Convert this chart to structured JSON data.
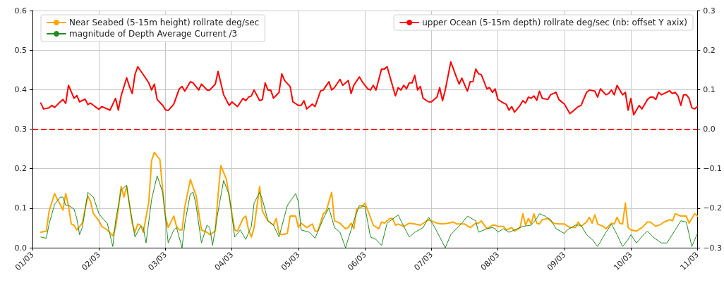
{
  "chart_data": {
    "type": "line",
    "xlim": [
      "--03-01",
      "--03-11"
    ],
    "xticks": [
      {
        "value": "--03-01",
        "label": "01/03"
      },
      {
        "value": "--03-02",
        "label": "02/03"
      },
      {
        "value": "--03-03",
        "label": "03/03"
      },
      {
        "value": "--03-04",
        "label": "04/03"
      },
      {
        "value": "--03-05",
        "label": "05/03"
      },
      {
        "value": "--03-06",
        "label": "06/03"
      },
      {
        "value": "--03-07",
        "label": "07/03"
      },
      {
        "value": "--03-08",
        "label": "08/03"
      },
      {
        "value": "--03-09",
        "label": "09/03"
      },
      {
        "value": "--03-10",
        "label": "10/03"
      },
      {
        "value": "--03-11",
        "label": "11/03"
      }
    ],
    "ylim": [
      0,
      0.6
    ],
    "yticks": [
      {
        "value": 0,
        "label": "0.0"
      },
      0.1,
      0.2,
      0.3,
      0.4,
      0.5,
      0.6
    ],
    "y2lim": [
      -0.3,
      0.3
    ],
    "y2ticks": [
      {
        "value": -0.3,
        "label": "−0.3"
      },
      {
        "value": -0.2,
        "label": "−0.2"
      },
      {
        "value": -0.1,
        "label": "−0.1"
      },
      {
        "value": 0,
        "label": "0.0"
      },
      0.1,
      0.2,
      0.3
    ],
    "grid": true,
    "legend": "top",
    "marker": "none",
    "line_style": "solid",
    "ref_lines": [
      {
        "axis": "y2",
        "value": 0,
        "color": "#ff0000",
        "line_style": "dashed"
      }
    ],
    "series": [
      {
        "name": "Near Seabed (5-15m height) rollrate deg/sec",
        "color": "#ffa500",
        "x": [
          "--03-01T03:00",
          "--03-01T05:00",
          "--03-01T06:00",
          "--03-01T08:00",
          "--03-01T09:00",
          "--03-01T10:00",
          "--03-01T11:00",
          "--03-01T12:00",
          "--03-01T13:00",
          "--03-01T14:00",
          "--03-01T15:00",
          "--03-01T16:00",
          "--03-01T18:00",
          "--03-01T19:00",
          "--03-01T20:00",
          "--03-01T21:00",
          "--03-01T22:00",
          "--03-02T00:00",
          "--03-02T01:00",
          "--03-02T03:00",
          "--03-02T05:00",
          "--03-02T06:00",
          "--03-02T07:00",
          "--03-02T08:00",
          "--03-02T09:00",
          "--03-02T10:00",
          "--03-02T11:00",
          "--03-02T12:00",
          "--03-02T13:00",
          "--03-02T14:00",
          "--03-02T15:00",
          "--03-02T16:00",
          "--03-02T18:00",
          "--03-02T19:00",
          "--03-02T20:00",
          "--03-02T22:00",
          "--03-02T23:00",
          "--03-03T00:00",
          "--03-03T01:00",
          "--03-03T03:00",
          "--03-03T04:00",
          "--03-03T05:00",
          "--03-03T06:00",
          "--03-03T07:00",
          "--03-03T09:00",
          "--03-03T10:00",
          "--03-03T11:00",
          "--03-03T13:00",
          "--03-03T15:00",
          "--03-03T16:00",
          "--03-03T18:00",
          "--03-03T19:00",
          "--03-03T20:00",
          "--03-03T22:00",
          "--03-04T00:00",
          "--03-04T01:00",
          "--03-04T02:00",
          "--03-04T04:00",
          "--03-04T05:00",
          "--03-04T06:00",
          "--03-04T07:00",
          "--03-04T08:00",
          "--03-04T10:00",
          "--03-04T11:00",
          "--03-04T13:00",
          "--03-04T15:00",
          "--03-04T16:00",
          "--03-04T17:00",
          "--03-04T18:00",
          "--03-04T20:00",
          "--03-04T21:00",
          "--03-04T23:00",
          "--03-05T00:00",
          "--03-05T01:00",
          "--03-05T03:00",
          "--03-05T05:00",
          "--03-05T06:00",
          "--03-05T07:00",
          "--03-05T09:00",
          "--03-05T10:00",
          "--03-05T12:00",
          "--03-05T13:00",
          "--03-05T15:00",
          "--03-05T17:00",
          "--03-05T18:00",
          "--03-05T19:00",
          "--03-05T20:00",
          "--03-05T21:00",
          "--03-05T23:00",
          "--03-06T00:00",
          "--03-06T02:00",
          "--03-06T03:00",
          "--03-06T05:00",
          "--03-06T06:00",
          "--03-06T07:00",
          "--03-06T09:00",
          "--03-06T10:00",
          "--03-06T11:00",
          "--03-06T12:00",
          "--03-06T14:00",
          "--03-06T16:00",
          "--03-06T18:00",
          "--03-06T20:00",
          "--03-06T23:00",
          "--03-07T00:00",
          "--03-07T02:00",
          "--03-07T04:00",
          "--03-07T06:00",
          "--03-07T08:00",
          "--03-07T09:00",
          "--03-07T12:00",
          "--03-07T14:00",
          "--03-07T16:00",
          "--03-07T17:00",
          "--03-07T18:00",
          "--03-07T20:00",
          "--03-07T22:00",
          "--03-07T23:00",
          "--03-08T00:00",
          "--03-08T02:00",
          "--03-08T03:00",
          "--03-08T05:00",
          "--03-08T06:00",
          "--03-08T08:00",
          "--03-08T09:00",
          "--03-08T10:00",
          "--03-08T11:00",
          "--03-08T12:00",
          "--03-08T13:00",
          "--03-08T14:00",
          "--03-08T15:00",
          "--03-08T16:00",
          "--03-08T18:00",
          "--03-08T20:00",
          "--03-08T22:00",
          "--03-09T00:00",
          "--03-09T02:00",
          "--03-09T04:00",
          "--03-09T05:00",
          "--03-09T06:00",
          "--03-09T08:00",
          "--03-09T09:00",
          "--03-09T10:00",
          "--03-09T11:00",
          "--03-09T12:00",
          "--03-09T14:00",
          "--03-09T15:00",
          "--03-09T17:00",
          "--03-09T18:00",
          "--03-09T19:00",
          "--03-09T20:00",
          "--03-09T21:00",
          "--03-09T22:00",
          "--03-09T23:00",
          "--03-10T00:00",
          "--03-10T02:00",
          "--03-10T04:00",
          "--03-10T06:00",
          "--03-10T07:00",
          "--03-10T09:00",
          "--03-10T11:00",
          "--03-10T12:00",
          "--03-10T14:00",
          "--03-10T15:00",
          "--03-10T16:00",
          "--03-10T18:00",
          "--03-10T20:00",
          "--03-10T21:00",
          "--03-10T23:00",
          "--03-11T00:00"
        ],
        "values": [
          0.039,
          0.042,
          0.092,
          0.137,
          0.122,
          0.11,
          0.095,
          0.137,
          0.107,
          0.06,
          0.057,
          0.045,
          0.062,
          0.098,
          0.131,
          0.116,
          0.086,
          0.068,
          0.054,
          0.045,
          0.03,
          0.051,
          0.098,
          0.155,
          0.128,
          0.155,
          0.11,
          0.062,
          0.039,
          0.06,
          0.057,
          0.039,
          0.116,
          0.22,
          0.241,
          0.223,
          0.146,
          0.08,
          0.051,
          0.08,
          0.054,
          0.045,
          0.045,
          0.104,
          0.173,
          0.152,
          0.134,
          0.045,
          0.039,
          0.033,
          0.042,
          0.134,
          0.208,
          0.173,
          0.086,
          0.045,
          0.042,
          0.074,
          0.08,
          0.045,
          0.027,
          0.051,
          0.155,
          0.092,
          0.068,
          0.057,
          0.074,
          0.036,
          0.033,
          0.036,
          0.08,
          0.08,
          0.051,
          0.062,
          0.051,
          0.06,
          0.042,
          0.042,
          0.086,
          0.092,
          0.14,
          0.068,
          0.062,
          0.048,
          0.051,
          0.062,
          0.048,
          0.098,
          0.104,
          0.113,
          0.077,
          0.057,
          0.048,
          0.065,
          0.062,
          0.074,
          0.074,
          0.057,
          0.06,
          0.054,
          0.062,
          0.06,
          0.057,
          0.071,
          0.068,
          0.062,
          0.06,
          0.062,
          0.065,
          0.06,
          0.06,
          0.051,
          0.062,
          0.062,
          0.068,
          0.048,
          0.057,
          0.057,
          0.054,
          0.054,
          0.045,
          0.051,
          0.042,
          0.051,
          0.086,
          0.057,
          0.074,
          0.06,
          0.086,
          0.062,
          0.06,
          0.071,
          0.074,
          0.062,
          0.06,
          0.06,
          0.051,
          0.051,
          0.065,
          0.054,
          0.065,
          0.077,
          0.062,
          0.083,
          0.06,
          0.054,
          0.048,
          0.062,
          0.06,
          0.077,
          0.062,
          0.06,
          0.113,
          0.051,
          0.045,
          0.042,
          0.051,
          0.065,
          0.065,
          0.054,
          0.06,
          0.065,
          0.071,
          0.068,
          0.086,
          0.08,
          0.08,
          0.062,
          0.086,
          0.08
        ]
      },
      {
        "name": "magnitude of Depth Average Current /3",
        "color": "#228b22",
        "x": [
          "--03-01T03:00",
          "--03-01T05:00",
          "--03-01T06:00",
          "--03-01T08:00",
          "--03-01T10:00",
          "--03-01T11:00",
          "--03-01T12:00",
          "--03-01T13:00",
          "--03-01T15:00",
          "--03-01T16:00",
          "--03-01T17:00",
          "--03-01T18:00",
          "--03-01T20:00",
          "--03-01T22:00",
          "--03-02T00:00",
          "--03-02T01:00",
          "--03-02T03:00",
          "--03-02T05:00",
          "--03-02T06:00",
          "--03-02T08:00",
          "--03-02T10:00",
          "--03-02T11:00",
          "--03-02T13:00",
          "--03-02T15:00",
          "--03-02T16:00",
          "--03-02T17:00",
          "--03-02T19:00",
          "--03-02T21:00",
          "--03-02T23:00",
          "--03-03T00:00",
          "--03-03T01:00",
          "--03-03T03:00",
          "--03-03T04:00",
          "--03-03T06:00",
          "--03-03T07:00",
          "--03-03T09:00",
          "--03-03T10:00",
          "--03-03T11:00",
          "--03-03T13:00",
          "--03-03T15:00",
          "--03-03T16:00",
          "--03-03T17:00",
          "--03-03T19:00",
          "--03-03T21:00",
          "--03-03T23:00",
          "--03-04T01:00",
          "--03-04T03:00",
          "--03-04T05:00",
          "--03-04T07:00",
          "--03-04T08:00",
          "--03-04T10:00",
          "--03-04T11:00",
          "--03-04T13:00",
          "--03-04T15:00",
          "--03-04T17:00",
          "--03-04T20:00",
          "--03-04T23:00",
          "--03-05T00:00",
          "--03-05T01:00",
          "--03-05T04:00",
          "--03-05T06:00",
          "--03-05T09:00",
          "--03-05T11:00",
          "--03-05T13:00",
          "--03-05T15:00",
          "--03-05T17:00",
          "--03-05T20:00",
          "--03-05T22:00",
          "--03-06T00:00",
          "--03-06T02:00",
          "--03-06T04:00",
          "--03-06T06:00",
          "--03-06T08:00",
          "--03-06T12:00",
          "--03-06T13:00",
          "--03-06T16:00",
          "--03-06T18:00",
          "--03-06T21:00",
          "--03-06T23:00",
          "--03-07T01:00",
          "--03-07T05:00",
          "--03-07T07:00",
          "--03-07T11:00",
          "--03-07T13:00",
          "--03-07T16:00",
          "--03-07T17:00",
          "--03-07T20:00",
          "--03-07T22:00",
          "--03-07T23:00",
          "--03-08T00:00",
          "--03-08T02:00",
          "--03-08T04:00",
          "--03-08T07:00",
          "--03-08T09:00",
          "--03-08T12:00",
          "--03-08T14:00",
          "--03-08T15:00",
          "--03-08T17:00",
          "--03-08T19:00",
          "--03-08T21:00",
          "--03-09T00:00",
          "--03-09T01:00",
          "--03-09T04:00",
          "--03-09T06:00",
          "--03-09T08:00",
          "--03-09T10:00",
          "--03-09T12:00",
          "--03-09T15:00",
          "--03-09T17:00",
          "--03-09T19:00",
          "--03-09T21:00",
          "--03-09T23:00",
          "--03-10T00:00",
          "--03-10T02:00",
          "--03-10T05:00",
          "--03-10T06:00",
          "--03-10T08:00",
          "--03-10T11:00",
          "--03-10T13:00",
          "--03-10T16:00",
          "--03-10T18:00",
          "--03-10T20:00",
          "--03-10T22:00",
          "--03-11T00:00"
        ],
        "values": [
          0.027,
          0.024,
          0.06,
          0.11,
          0.128,
          0.128,
          0.107,
          0.107,
          0.098,
          0.074,
          0.033,
          0.051,
          0.14,
          0.128,
          0.086,
          0.077,
          0.062,
          0.003,
          0.068,
          0.146,
          0.158,
          0.11,
          0.027,
          0.054,
          0.051,
          0.012,
          0.122,
          0.182,
          0.14,
          0.077,
          0.012,
          0.045,
          0.051,
          0.0,
          0.062,
          0.137,
          0.14,
          0.11,
          0.012,
          0.057,
          0.051,
          0.006,
          0.092,
          0.17,
          0.134,
          0.027,
          0.045,
          0.021,
          0.054,
          0.113,
          0.14,
          0.122,
          0.068,
          0.057,
          0.027,
          0.107,
          0.137,
          0.116,
          0.045,
          0.039,
          0.024,
          0.074,
          0.101,
          0.051,
          0.039,
          0.0,
          0.068,
          0.107,
          0.104,
          0.027,
          0.021,
          0.006,
          0.062,
          0.083,
          0.068,
          0.027,
          0.039,
          0.051,
          0.077,
          0.054,
          0.0,
          0.033,
          0.062,
          0.08,
          0.068,
          0.039,
          0.048,
          0.051,
          0.048,
          0.039,
          0.048,
          0.039,
          0.048,
          0.054,
          0.057,
          0.074,
          0.086,
          0.08,
          0.071,
          0.048,
          0.036,
          0.045,
          0.057,
          0.057,
          0.033,
          0.021,
          0.003,
          0.039,
          0.06,
          0.033,
          0.003,
          0.021,
          0.033,
          0.012,
          0.036,
          0.042,
          0.027,
          0.012,
          0.012,
          0.045,
          0.068,
          0.065,
          0.003,
          0.036
        ]
      },
      {
        "name": "upper Ocean (5-15m depth) rollrate deg/sec (nb: offset Y axix)",
        "color": "#ff0000",
        "axis": "y2",
        "x": [
          "--03-01T03:00",
          "--03-01T04:00",
          "--03-01T06:00",
          "--03-01T07:00",
          "--03-01T08:00",
          "--03-01T10:00",
          "--03-01T11:00",
          "--03-01T12:00",
          "--03-01T13:00",
          "--03-01T15:00",
          "--03-01T16:00",
          "--03-01T17:00",
          "--03-01T19:00",
          "--03-01T20:00",
          "--03-01T21:00",
          "--03-01T22:00",
          "--03-02T00:00",
          "--03-02T01:00",
          "--03-02T02:00",
          "--03-02T04:00",
          "--03-02T06:00",
          "--03-02T07:00",
          "--03-02T08:00",
          "--03-02T10:00",
          "--03-02T11:00",
          "--03-02T12:00",
          "--03-02T13:00",
          "--03-02T14:00",
          "--03-02T16:00",
          "--03-02T18:00",
          "--03-02T19:00",
          "--03-02T20:00",
          "--03-02T21:00",
          "--03-02T23:00",
          "--03-03T00:00",
          "--03-03T01:00",
          "--03-03T03:00",
          "--03-03T05:00",
          "--03-03T06:00",
          "--03-03T07:00",
          "--03-03T09:00",
          "--03-03T10:00",
          "--03-03T12:00",
          "--03-03T13:00",
          "--03-03T15:00",
          "--03-03T16:00",
          "--03-03T18:00",
          "--03-03T19:00",
          "--03-03T21:00",
          "--03-03T23:00",
          "--03-04T00:00",
          "--03-04T02:00",
          "--03-04T04:00",
          "--03-04T05:00",
          "--03-04T06:00",
          "--03-04T07:00",
          "--03-04T08:00",
          "--03-04T10:00",
          "--03-04T11:00",
          "--03-04T12:00",
          "--03-04T13:00",
          "--03-04T14:00",
          "--03-04T15:00",
          "--03-04T17:00",
          "--03-04T18:00",
          "--03-04T19:00",
          "--03-04T21:00",
          "--03-04T22:00",
          "--03-05T00:00",
          "--03-05T01:00",
          "--03-05T02:00",
          "--03-05T03:00",
          "--03-05T05:00",
          "--03-05T06:00",
          "--03-05T08:00",
          "--03-05T09:00",
          "--03-05T11:00",
          "--03-05T12:00",
          "--03-05T13:00",
          "--03-05T15:00",
          "--03-05T16:00",
          "--03-05T18:00",
          "--03-05T19:00",
          "--03-05T20:00",
          "--03-05T22:00",
          "--03-05T23:00",
          "--03-06T01:00",
          "--03-06T02:00",
          "--03-06T03:00",
          "--03-06T04:00",
          "--03-06T06:00",
          "--03-06T07:00",
          "--03-06T08:00",
          "--03-06T11:00",
          "--03-06T12:00",
          "--03-06T13:00",
          "--03-06T14:00",
          "--03-06T15:00",
          "--03-06T16:00",
          "--03-06T17:00",
          "--03-06T18:00",
          "--03-06T19:00",
          "--03-06T20:00",
          "--03-06T21:00",
          "--03-06T23:00",
          "--03-07T00:00",
          "--03-07T02:00",
          "--03-07T03:00",
          "--03-07T04:00",
          "--03-07T05:00",
          "--03-07T07:00",
          "--03-07T09:00",
          "--03-07T10:00",
          "--03-07T11:00",
          "--03-07T13:00",
          "--03-07T14:00",
          "--03-07T15:00",
          "--03-07T16:00",
          "--03-07T17:00",
          "--03-07T18:00",
          "--03-07T20:00",
          "--03-07T21:00",
          "--03-07T22:00",
          "--03-07T23:00",
          "--03-08T00:00",
          "--03-08T02:00",
          "--03-08T03:00",
          "--03-08T04:00",
          "--03-08T05:00",
          "--03-08T06:00",
          "--03-08T08:00",
          "--03-08T09:00",
          "--03-08T10:00",
          "--03-08T11:00",
          "--03-08T12:00",
          "--03-08T13:00",
          "--03-08T14:00",
          "--03-08T15:00",
          "--03-08T16:00",
          "--03-08T18:00",
          "--03-08T19:00",
          "--03-08T21:00",
          "--03-08T22:00",
          "--03-09T00:00",
          "--03-09T02:00",
          "--03-09T03:00",
          "--03-09T05:00",
          "--03-09T06:00",
          "--03-09T08:00",
          "--03-09T09:00",
          "--03-09T11:00",
          "--03-09T12:00",
          "--03-09T13:00",
          "--03-09T15:00",
          "--03-09T16:00",
          "--03-09T17:00",
          "--03-09T18:00",
          "--03-09T19:00",
          "--03-09T20:00",
          "--03-09T21:00",
          "--03-09T22:00",
          "--03-09T23:00",
          "--03-10T00:00",
          "--03-10T01:00",
          "--03-10T03:00",
          "--03-10T04:00",
          "--03-10T06:00",
          "--03-10T07:00",
          "--03-10T08:00",
          "--03-10T09:00",
          "--03-10T10:00",
          "--03-10T11:00",
          "--03-10T12:00",
          "--03-10T14:00",
          "--03-10T15:00",
          "--03-10T16:00",
          "--03-10T17:00",
          "--03-10T18:00",
          "--03-10T19:00",
          "--03-10T20:00",
          "--03-10T21:00",
          "--03-10T22:00",
          "--03-10T23:00",
          "--03-11T00:00"
        ],
        "values": [
          0.066,
          0.051,
          0.054,
          0.06,
          0.055,
          0.069,
          0.075,
          0.065,
          0.111,
          0.078,
          0.085,
          0.069,
          0.076,
          0.062,
          0.066,
          0.06,
          0.05,
          0.057,
          0.054,
          0.048,
          0.078,
          0.048,
          0.084,
          0.13,
          0.108,
          0.09,
          0.138,
          0.158,
          0.138,
          0.117,
          0.099,
          0.114,
          0.075,
          0.06,
          0.049,
          0.047,
          0.063,
          0.102,
          0.108,
          0.096,
          0.12,
          0.117,
          0.099,
          0.114,
          0.099,
          0.099,
          0.114,
          0.146,
          0.087,
          0.06,
          0.069,
          0.057,
          0.078,
          0.072,
          0.081,
          0.084,
          0.099,
          0.072,
          0.075,
          0.117,
          0.099,
          0.099,
          0.078,
          0.093,
          0.14,
          0.123,
          0.108,
          0.069,
          0.06,
          0.06,
          0.072,
          0.051,
          0.063,
          0.057,
          0.097,
          0.099,
          0.12,
          0.099,
          0.105,
          0.126,
          0.111,
          0.123,
          0.09,
          0.111,
          0.132,
          0.12,
          0.102,
          0.099,
          0.111,
          0.099,
          0.152,
          0.152,
          0.158,
          0.084,
          0.105,
          0.099,
          0.111,
          0.102,
          0.117,
          0.117,
          0.136,
          0.099,
          0.108,
          0.078,
          0.069,
          0.069,
          0.081,
          0.105,
          0.072,
          0.099,
          0.17,
          0.132,
          0.114,
          0.129,
          0.096,
          0.12,
          0.12,
          0.152,
          0.14,
          0.138,
          0.102,
          0.105,
          0.093,
          0.102,
          0.075,
          0.066,
          0.063,
          0.048,
          0.057,
          0.043,
          0.06,
          0.072,
          0.066,
          0.081,
          0.078,
          0.084,
          0.073,
          0.096,
          0.078,
          0.075,
          0.087,
          0.093,
          0.075,
          0.063,
          0.039,
          0.045,
          0.057,
          0.06,
          0.093,
          0.099,
          0.096,
          0.081,
          0.102,
          0.087,
          0.09,
          0.099,
          0.087,
          0.111,
          0.099,
          0.087,
          0.093,
          0.048,
          0.078,
          0.036,
          0.06,
          0.051,
          0.075,
          0.081,
          0.081,
          0.075,
          0.093,
          0.087,
          0.09,
          0.097,
          0.09,
          0.093,
          0.084,
          0.06,
          0.087,
          0.087,
          0.078,
          0.054,
          0.051,
          0.057
        ]
      }
    ]
  }
}
